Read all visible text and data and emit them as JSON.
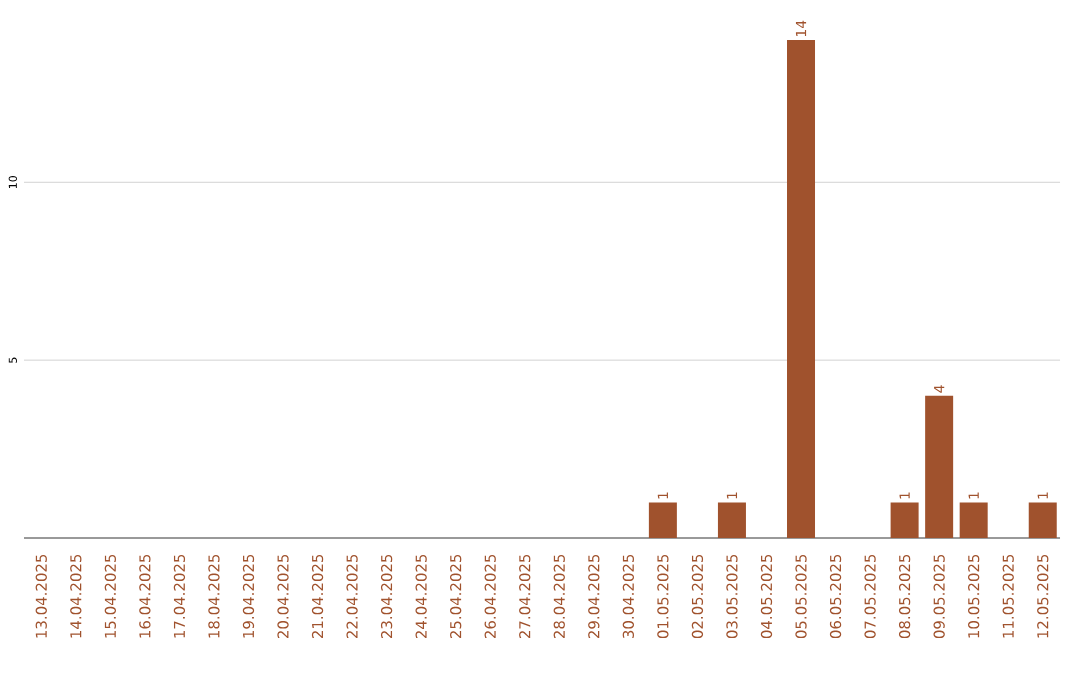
{
  "chart_data": {
    "type": "bar",
    "categories": [
      "13.04.2025",
      "14.04.2025",
      "15.04.2025",
      "16.04.2025",
      "17.04.2025",
      "18.04.2025",
      "19.04.2025",
      "20.04.2025",
      "21.04.2025",
      "22.04.2025",
      "23.04.2025",
      "24.04.2025",
      "25.04.2025",
      "26.04.2025",
      "27.04.2025",
      "28.04.2025",
      "29.04.2025",
      "30.04.2025",
      "01.05.2025",
      "02.05.2025",
      "03.05.2025",
      "04.05.2025",
      "05.05.2025",
      "06.05.2025",
      "07.05.2025",
      "08.05.2025",
      "09.05.2025",
      "10.05.2025",
      "11.05.2025",
      "12.05.2025"
    ],
    "values": [
      0,
      0,
      0,
      0,
      0,
      0,
      0,
      0,
      0,
      0,
      0,
      0,
      0,
      0,
      0,
      0,
      0,
      0,
      1,
      0,
      1,
      0,
      14,
      0,
      0,
      1,
      4,
      1,
      0,
      1
    ],
    "value_labels": [
      null,
      null,
      null,
      null,
      null,
      null,
      null,
      null,
      null,
      null,
      null,
      null,
      null,
      null,
      null,
      null,
      null,
      null,
      "1",
      null,
      "1",
      null,
      "14",
      null,
      null,
      "1",
      "4",
      "1",
      null,
      "1"
    ],
    "color": "#a0522d",
    "ylim": [
      0,
      14
    ],
    "yticks": [
      5,
      10
    ],
    "grid": "y"
  }
}
